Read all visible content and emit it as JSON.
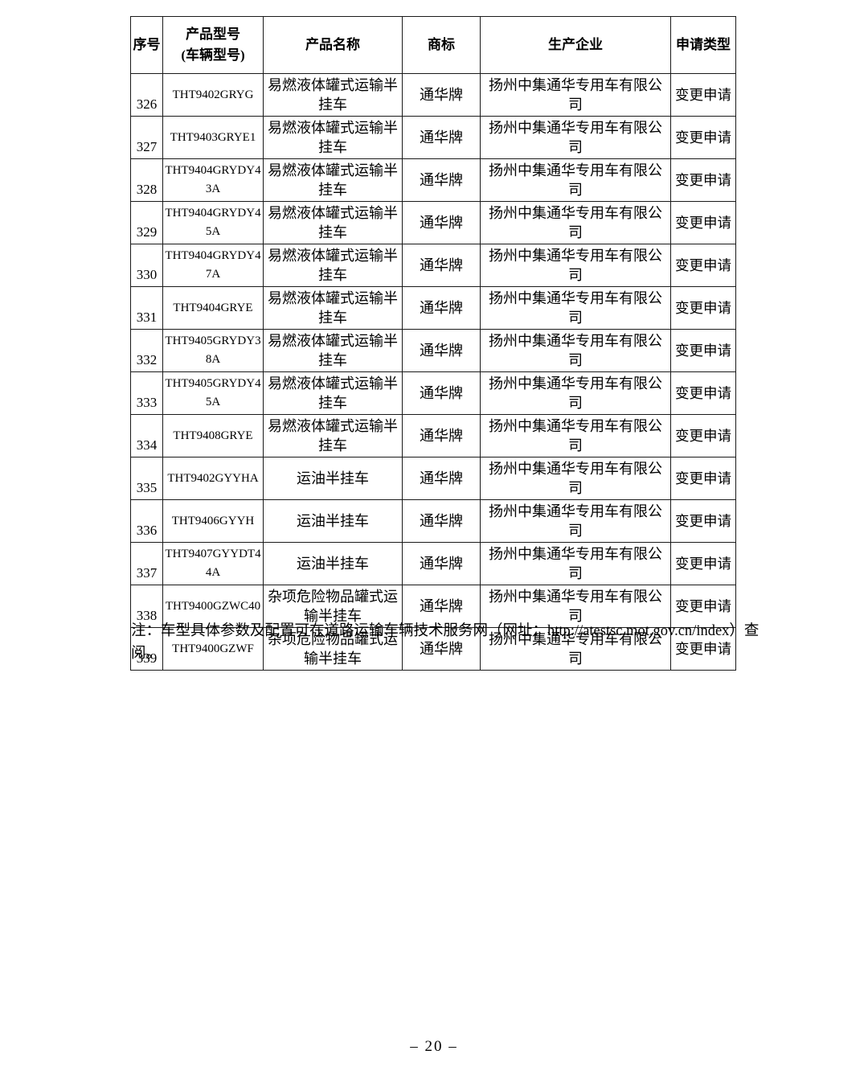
{
  "page": {
    "note": "注：车型具体参数及配置可在道路运输车辆技术服务网（网址：http://atestsc.mot.gov.cn/index）查阅。",
    "page_number": "– 20 –"
  },
  "table": {
    "columns": [
      {
        "label": "序号"
      },
      {
        "label_line1": "产品型号",
        "label_line2": "(车辆型号)"
      },
      {
        "label": "产品名称"
      },
      {
        "label": "商标"
      },
      {
        "label": "生产企业"
      },
      {
        "label": "申请类型"
      }
    ],
    "rows": [
      {
        "index": "326",
        "model": "THT9402GRYG",
        "name": "易燃液体罐式运输半挂车",
        "brand": "通华牌",
        "manufacturer": "扬州中集通华专用车有限公司",
        "application_type": "变更申请"
      },
      {
        "index": "327",
        "model": "THT9403GRYE1",
        "name": "易燃液体罐式运输半挂车",
        "brand": "通华牌",
        "manufacturer": "扬州中集通华专用车有限公司",
        "application_type": "变更申请"
      },
      {
        "index": "328",
        "model": "THT9404GRYDY43A",
        "name": "易燃液体罐式运输半挂车",
        "brand": "通华牌",
        "manufacturer": "扬州中集通华专用车有限公司",
        "application_type": "变更申请"
      },
      {
        "index": "329",
        "model": "THT9404GRYDY45A",
        "name": "易燃液体罐式运输半挂车",
        "brand": "通华牌",
        "manufacturer": "扬州中集通华专用车有限公司",
        "application_type": "变更申请"
      },
      {
        "index": "330",
        "model": "THT9404GRYDY47A",
        "name": "易燃液体罐式运输半挂车",
        "brand": "通华牌",
        "manufacturer": "扬州中集通华专用车有限公司",
        "application_type": "变更申请"
      },
      {
        "index": "331",
        "model": "THT9404GRYE",
        "name": "易燃液体罐式运输半挂车",
        "brand": "通华牌",
        "manufacturer": "扬州中集通华专用车有限公司",
        "application_type": "变更申请"
      },
      {
        "index": "332",
        "model": "THT9405GRYDY38A",
        "name": "易燃液体罐式运输半挂车",
        "brand": "通华牌",
        "manufacturer": "扬州中集通华专用车有限公司",
        "application_type": "变更申请"
      },
      {
        "index": "333",
        "model": "THT9405GRYDY45A",
        "name": "易燃液体罐式运输半挂车",
        "brand": "通华牌",
        "manufacturer": "扬州中集通华专用车有限公司",
        "application_type": "变更申请"
      },
      {
        "index": "334",
        "model": "THT9408GRYE",
        "name": "易燃液体罐式运输半挂车",
        "brand": "通华牌",
        "manufacturer": "扬州中集通华专用车有限公司",
        "application_type": "变更申请"
      },
      {
        "index": "335",
        "model": "THT9402GYYHA",
        "name": "运油半挂车",
        "brand": "通华牌",
        "manufacturer": "扬州中集通华专用车有限公司",
        "application_type": "变更申请"
      },
      {
        "index": "336",
        "model": "THT9406GYYH",
        "name": "运油半挂车",
        "brand": "通华牌",
        "manufacturer": "扬州中集通华专用车有限公司",
        "application_type": "变更申请"
      },
      {
        "index": "337",
        "model": "THT9407GYYDT44A",
        "name": "运油半挂车",
        "brand": "通华牌",
        "manufacturer": "扬州中集通华专用车有限公司",
        "application_type": "变更申请"
      },
      {
        "index": "338",
        "model": "THT9400GZWC40",
        "name": "杂项危险物品罐式运输半挂车",
        "brand": "通华牌",
        "manufacturer": "扬州中集通华专用车有限公司",
        "application_type": "变更申请"
      },
      {
        "index": "339",
        "model": "THT9400GZWF",
        "name": "杂项危险物品罐式运输半挂车",
        "brand": "通华牌",
        "manufacturer": "扬州中集通华专用车有限公司",
        "application_type": "变更申请"
      }
    ]
  }
}
